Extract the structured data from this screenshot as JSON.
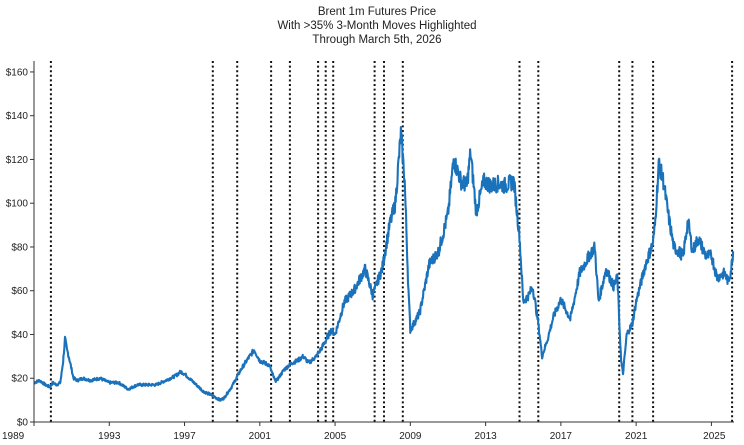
{
  "chart_data": {
    "type": "line",
    "title": [
      "Brent 1m Futures Price",
      "With >35% 3-Month Moves Highlighted",
      "Through March 5th, 2026"
    ],
    "xlabel": "",
    "ylabel": "",
    "xlim": [
      1989,
      2026.2
    ],
    "ylim": [
      0,
      165
    ],
    "y_ticks": [
      0,
      20,
      40,
      60,
      80,
      100,
      120,
      140,
      160
    ],
    "y_tick_labels": [
      "$0",
      "$20",
      "$40",
      "$60",
      "$80",
      "$100",
      "$120",
      "$140",
      "$160"
    ],
    "x_ticks": [
      1989,
      1993,
      1997,
      2001,
      2005,
      2009,
      2013,
      2017,
      2021,
      2025
    ],
    "x_tick_labels": [
      "1989",
      "1993",
      "1997",
      "2001",
      "2005",
      "2009",
      "2013",
      "2017",
      "2021",
      "2025"
    ],
    "highlight_dates": [
      1989.9,
      1998.5,
      1999.8,
      2001.6,
      2002.6,
      2004.1,
      2004.5,
      2004.9,
      2007.1,
      2007.6,
      2008.6,
      2014.8,
      2015.8,
      2020.1,
      2020.8,
      2021.9,
      2026.1
    ],
    "colors": {
      "line": "#1a72bb",
      "highlight": "#111111",
      "axis": "#333333"
    },
    "series": [
      {
        "name": "Brent 1m Futures Price",
        "x": [
          1989.0,
          1989.3,
          1989.6,
          1989.85,
          1990.0,
          1990.2,
          1990.4,
          1990.55,
          1990.65,
          1990.75,
          1990.85,
          1991.0,
          1991.1,
          1991.3,
          1991.6,
          1992.0,
          1992.5,
          1993.0,
          1993.5,
          1994.0,
          1994.5,
          1995.0,
          1995.5,
          1996.0,
          1996.5,
          1996.8,
          1997.0,
          1997.5,
          1998.0,
          1998.5,
          1998.9,
          1999.1,
          1999.5,
          2000.0,
          2000.3,
          2000.7,
          2001.0,
          2001.5,
          2001.8,
          2001.9,
          2002.3,
          2002.7,
          2003.0,
          2003.3,
          2003.6,
          2004.0,
          2004.3,
          2004.8,
          2005.0,
          2005.5,
          2006.0,
          2006.6,
          2007.0,
          2007.5,
          2007.9,
          2008.2,
          2008.5,
          2008.7,
          2008.9,
          2009.0,
          2009.5,
          2010.0,
          2010.5,
          2011.0,
          2011.3,
          2011.7,
          2012.0,
          2012.2,
          2012.5,
          2012.9,
          2013.3,
          2013.7,
          2014.0,
          2014.5,
          2014.8,
          2015.0,
          2015.3,
          2015.5,
          2015.8,
          2016.0,
          2016.3,
          2016.6,
          2017.0,
          2017.5,
          2018.0,
          2018.5,
          2018.8,
          2019.0,
          2019.4,
          2019.8,
          2020.0,
          2020.2,
          2020.3,
          2020.5,
          2020.8,
          2021.0,
          2021.5,
          2021.9,
          2022.0,
          2022.2,
          2022.45,
          2022.7,
          2023.0,
          2023.5,
          2023.75,
          2024.0,
          2024.3,
          2024.7,
          2025.0,
          2025.3,
          2025.7,
          2025.9,
          2026.05,
          2026.15
        ],
        "values": [
          18,
          19,
          17,
          16,
          18,
          17,
          18,
          28,
          38,
          33,
          30,
          24,
          20,
          19,
          20,
          19,
          20,
          18,
          18,
          15,
          17,
          17,
          17,
          19,
          21,
          23,
          22,
          18,
          14,
          12,
          10,
          11,
          16,
          24,
          28,
          33,
          28,
          26,
          19,
          19,
          24,
          27,
          28,
          30,
          27,
          30,
          34,
          42,
          40,
          55,
          60,
          70,
          58,
          70,
          90,
          100,
          132,
          110,
          60,
          42,
          50,
          72,
          78,
          95,
          120,
          110,
          108,
          123,
          96,
          110,
          108,
          109,
          108,
          110,
          85,
          55,
          58,
          62,
          45,
          30,
          38,
          48,
          56,
          47,
          68,
          76,
          80,
          55,
          70,
          62,
          66,
          28,
          22,
          40,
          45,
          55,
          72,
          82,
          90,
          118,
          110,
          95,
          80,
          76,
          92,
          78,
          84,
          76,
          76,
          66,
          68,
          64,
          70,
          78
        ]
      }
    ]
  }
}
